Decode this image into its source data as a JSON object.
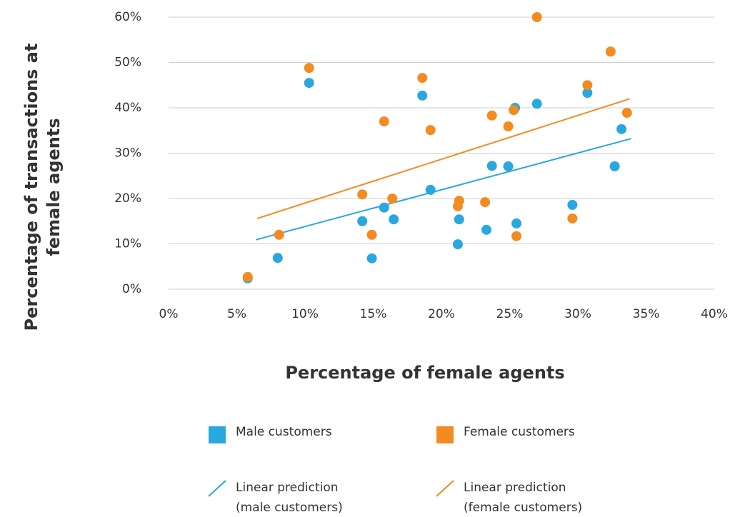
{
  "chart_data": {
    "type": "scatter",
    "xlabel": "Percentage of female agents",
    "ylabel": [
      "Percentage of transactions at",
      "female agents"
    ],
    "xlim": [
      0,
      40
    ],
    "ylim": [
      0,
      60
    ],
    "xticks": [
      {
        "value": 0,
        "label": "0%"
      },
      {
        "value": 5,
        "label": "5%"
      },
      {
        "value": 10,
        "label": "10%"
      },
      {
        "value": 15,
        "label": "15%"
      },
      {
        "value": 20,
        "label": "20%"
      },
      {
        "value": 25,
        "label": "25%"
      },
      {
        "value": 30,
        "label": "30%"
      },
      {
        "value": 35,
        "label": "35%"
      },
      {
        "value": 40,
        "label": "40%"
      }
    ],
    "yticks": [
      {
        "value": 0,
        "label": "0%"
      },
      {
        "value": 10,
        "label": "10%"
      },
      {
        "value": 20,
        "label": "20%"
      },
      {
        "value": 30,
        "label": "30%"
      },
      {
        "value": 40,
        "label": "40%"
      },
      {
        "value": 50,
        "label": "50%"
      },
      {
        "value": 60,
        "label": "60%"
      }
    ],
    "grid": true,
    "series": [
      {
        "name": "Male customers",
        "color": "#29a8e0",
        "x": [
          5.8,
          8.0,
          10.3,
          14.2,
          14.9,
          15.8,
          16.5,
          18.6,
          19.2,
          21.2,
          21.3,
          23.3,
          23.7,
          24.9,
          25.4,
          25.5,
          27.0,
          29.6,
          30.7,
          32.7,
          33.2
        ],
        "values": [
          2.4,
          6.9,
          45.5,
          15.0,
          6.8,
          18.0,
          15.4,
          42.7,
          21.9,
          9.9,
          15.4,
          13.1,
          27.2,
          27.1,
          40.0,
          14.5,
          40.9,
          18.6,
          43.3,
          27.1,
          35.3
        ]
      },
      {
        "name": "Female customers",
        "color": "#f38b21",
        "x": [
          5.8,
          8.1,
          10.3,
          14.2,
          14.9,
          15.8,
          16.4,
          18.6,
          19.2,
          21.3,
          21.2,
          23.2,
          23.7,
          24.9,
          25.3,
          25.5,
          27.0,
          29.6,
          30.7,
          32.4,
          33.6
        ],
        "values": [
          2.7,
          12.0,
          48.8,
          20.9,
          12.0,
          37.0,
          20.0,
          46.6,
          35.1,
          19.5,
          18.3,
          19.2,
          38.3,
          35.9,
          39.5,
          11.7,
          60.0,
          15.6,
          45.0,
          52.4,
          38.9
        ]
      }
    ],
    "trendlines": [
      {
        "name": [
          "Linear prediction",
          "(male customers)"
        ],
        "color": "#29a8e0",
        "x": [
          6.4,
          33.9
        ],
        "values": [
          10.9,
          33.2
        ]
      },
      {
        "name": [
          "Linear prediction",
          "(female customers)"
        ],
        "color": "#f38b21",
        "x": [
          6.5,
          33.8
        ],
        "values": [
          15.6,
          42.0
        ]
      }
    ]
  }
}
